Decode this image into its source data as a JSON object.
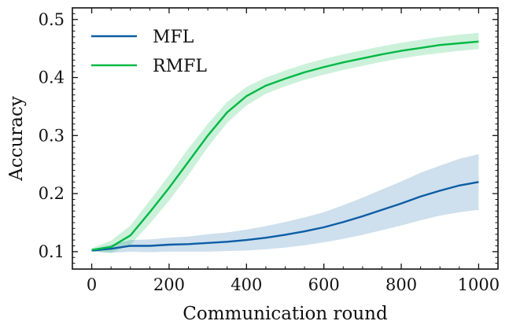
{
  "chart_data": {
    "type": "line",
    "xlabel": "Communication round",
    "ylabel": "Accuracy",
    "xlim": [
      -50,
      1050
    ],
    "ylim": [
      0.07,
      0.52
    ],
    "x_ticks": [
      0,
      200,
      400,
      600,
      800,
      1000
    ],
    "y_ticks": [
      0.1,
      0.2,
      0.3,
      0.4,
      0.5
    ],
    "x_tick_labels": [
      "0",
      "200",
      "400",
      "600",
      "800",
      "1000"
    ],
    "y_tick_labels": [
      "0.1",
      "0.2",
      "0.3",
      "0.4",
      "0.5"
    ],
    "grid": false,
    "legend_position": "top-left",
    "x": [
      0,
      50,
      100,
      150,
      200,
      250,
      300,
      350,
      400,
      450,
      500,
      550,
      600,
      650,
      700,
      750,
      800,
      850,
      900,
      950,
      1000
    ],
    "series": [
      {
        "name": "MFL",
        "color": "#0c5da5",
        "values": [
          0.102,
          0.105,
          0.11,
          0.11,
          0.112,
          0.113,
          0.115,
          0.117,
          0.12,
          0.124,
          0.129,
          0.135,
          0.142,
          0.151,
          0.161,
          0.172,
          0.183,
          0.195,
          0.205,
          0.214,
          0.22
        ],
        "band_lower": [
          0.1,
          0.098,
          0.1,
          0.099,
          0.1,
          0.1,
          0.1,
          0.101,
          0.102,
          0.104,
          0.107,
          0.111,
          0.116,
          0.122,
          0.129,
          0.137,
          0.145,
          0.154,
          0.162,
          0.168,
          0.172
        ],
        "band_upper": [
          0.104,
          0.112,
          0.12,
          0.121,
          0.124,
          0.126,
          0.13,
          0.133,
          0.138,
          0.144,
          0.151,
          0.159,
          0.168,
          0.18,
          0.193,
          0.207,
          0.221,
          0.236,
          0.248,
          0.26,
          0.268
        ]
      },
      {
        "name": "RMFL",
        "color": "#00b945",
        "values": [
          0.103,
          0.108,
          0.128,
          0.168,
          0.21,
          0.255,
          0.3,
          0.34,
          0.368,
          0.386,
          0.398,
          0.409,
          0.418,
          0.426,
          0.433,
          0.44,
          0.446,
          0.451,
          0.456,
          0.459,
          0.462
        ],
        "band_lower": [
          0.101,
          0.098,
          0.112,
          0.148,
          0.188,
          0.232,
          0.28,
          0.322,
          0.352,
          0.372,
          0.385,
          0.396,
          0.405,
          0.413,
          0.42,
          0.427,
          0.433,
          0.438,
          0.442,
          0.446,
          0.449
        ],
        "band_upper": [
          0.106,
          0.119,
          0.145,
          0.188,
          0.232,
          0.278,
          0.32,
          0.358,
          0.384,
          0.4,
          0.412,
          0.423,
          0.432,
          0.44,
          0.447,
          0.454,
          0.46,
          0.465,
          0.47,
          0.474,
          0.477
        ]
      }
    ]
  }
}
